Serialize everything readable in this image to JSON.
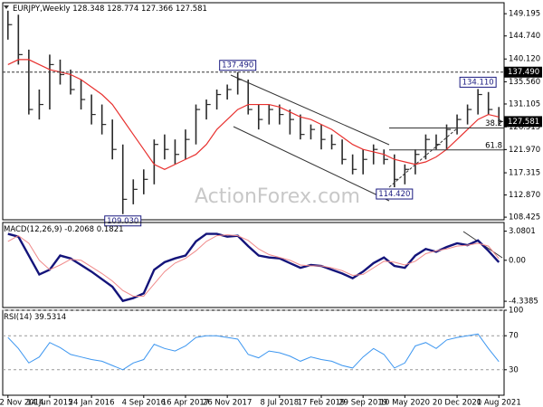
{
  "chart_data": [
    {
      "type": "hlc",
      "title": "EURJPY,Weekly",
      "quote": [
        128.348,
        128.774,
        127.366,
        127.581
      ],
      "color": "#2b2b2b",
      "high": [
        149.8,
        149,
        142,
        134,
        141,
        140,
        138,
        136,
        133,
        131,
        128,
        123,
        116,
        118,
        124,
        125,
        124,
        126,
        131,
        132,
        134,
        135,
        137.49,
        136,
        131,
        131,
        131,
        130,
        129,
        127,
        127,
        125,
        124,
        121,
        122,
        123,
        122,
        121,
        119,
        122,
        125,
        125,
        127,
        129,
        131,
        134.11,
        133.5,
        130.5
      ],
      "low": [
        144,
        139,
        129,
        128,
        130,
        135,
        133,
        130,
        127,
        125,
        120,
        109.03,
        111,
        113,
        115,
        120,
        119,
        120,
        123,
        128,
        130,
        132,
        133,
        129,
        126,
        127,
        127,
        125,
        124,
        124,
        122,
        122,
        119,
        117,
        117,
        119,
        119,
        114.42,
        115,
        117,
        120,
        122,
        122,
        125,
        127,
        129,
        129,
        127
      ],
      "close": [
        147,
        141,
        130,
        131,
        139,
        137,
        134,
        132,
        129,
        127,
        122,
        112,
        114,
        116,
        123,
        122,
        121,
        124,
        130,
        131,
        133,
        134,
        136,
        130,
        128,
        130,
        129,
        128,
        125,
        126,
        124,
        123,
        120,
        118,
        120,
        122,
        120,
        116,
        118,
        121,
        124,
        123,
        126,
        128,
        130,
        133,
        130,
        127.581
      ],
      "ma": {
        "color": "#e8312f",
        "values": [
          139,
          140,
          140,
          139,
          138,
          137.5,
          137,
          136,
          134.5,
          133,
          131,
          128,
          125,
          122,
          119,
          118,
          119,
          120,
          121,
          123,
          126,
          128,
          130,
          131,
          131,
          131,
          130.5,
          129.5,
          128.5,
          128,
          127,
          126,
          124.5,
          123,
          122,
          121.5,
          121,
          120,
          119.5,
          119,
          119.5,
          120.5,
          122,
          124,
          126,
          128,
          129,
          128.5
        ]
      },
      "ylim": [
        107.9,
        151.4
      ],
      "yticks": [
        108.425,
        {
          "value": 112.87,
          "label": "112.870"
        },
        117.315,
        {
          "value": 121.97,
          "label": "121.970"
        },
        126.515,
        131.105,
        {
          "value": 135.56,
          "label": "135.560"
        },
        {
          "value": 140.12,
          "label": "140.120"
        },
        {
          "value": 144.74,
          "label": "144.740"
        },
        149.195
      ],
      "annotations": [
        {
          "value": 137.49,
          "label": "137.490",
          "hline": true
        },
        {
          "value": 134.11,
          "label": "134.110"
        },
        {
          "value": 109.03,
          "label": "109.030"
        },
        {
          "value": 114.42,
          "label": "114.420"
        }
      ],
      "fib_levels": [
        {
          "ratio": 38.2,
          "price": 126.3
        },
        {
          "ratio": 61.8,
          "price": 121.9
        }
      ],
      "watermark": "ActionForex.com"
    },
    {
      "type": "macd",
      "title": "MACD(12,26,9)",
      "series": [
        {
          "color": "#14147a",
          "values": [
            2.8,
            2.5,
            0.5,
            -1.5,
            -1,
            0.5,
            0.2,
            -0.5,
            -1.2,
            -2,
            -2.8,
            -4.3,
            -4,
            -3.5,
            -1,
            -0.2,
            0.2,
            0.5,
            2,
            2.8,
            2.8,
            2.5,
            2.6,
            1.5,
            0.5,
            0.3,
            0.2,
            -0.3,
            -0.8,
            -0.5,
            -0.6,
            -1,
            -1.4,
            -1.9,
            -1.2,
            -0.3,
            0.3,
            -0.6,
            -0.8,
            0.5,
            1.2,
            0.9,
            1.4,
            1.8,
            1.6,
            2.1,
            1,
            -0.2068
          ]
        },
        {
          "color": "#f08a8a",
          "values": [
            2,
            2.6,
            1.8,
            0,
            -1,
            -0.5,
            0.1,
            0,
            -0.7,
            -1.4,
            -2.2,
            -3.2,
            -3.8,
            -3.8,
            -2.5,
            -1.2,
            -0.3,
            0.2,
            1,
            2,
            2.6,
            2.7,
            2.6,
            2.1,
            1.2,
            0.6,
            0.3,
            0,
            -0.5,
            -0.6,
            -0.6,
            -0.8,
            -1.1,
            -1.6,
            -1.5,
            -0.8,
            -0.1,
            -0.2,
            -0.5,
            -0.1,
            0.7,
            1,
            1.2,
            1.5,
            1.6,
            1.8,
            1.5,
            0.1821
          ]
        }
      ],
      "ylim": [
        -5,
        4
      ],
      "yticks": [
        3.0801,
        {
          "value": 0,
          "label": "0.00"
        },
        -4.3385
      ]
    },
    {
      "type": "line",
      "title": "RSI(14)",
      "series": [
        {
          "color": "#3c96f0",
          "values": [
            68,
            55,
            38,
            45,
            62,
            56,
            48,
            45,
            42,
            40,
            35,
            30,
            38,
            42,
            60,
            55,
            52,
            58,
            68,
            70,
            70,
            68,
            66,
            48,
            44,
            52,
            50,
            46,
            40,
            45,
            42,
            40,
            35,
            32,
            45,
            55,
            48,
            32,
            38,
            58,
            62,
            55,
            65,
            68,
            70,
            72,
            55,
            39.5314
          ]
        }
      ],
      "ylim": [
        0,
        100
      ],
      "yticks": [
        100,
        70,
        30
      ],
      "grid": "dashed",
      "categories": [
        "2 Nov 2014",
        null,
        null,
        null,
        "14 Jun 2015",
        null,
        null,
        null,
        "24 Jan 2016",
        null,
        null,
        null,
        null,
        "4 Sep 2016",
        null,
        null,
        null,
        "16 Apr 2017",
        null,
        null,
        null,
        "26 Nov 2017",
        null,
        null,
        null,
        null,
        "8 Jul 2018",
        null,
        null,
        null,
        "17 Feb 2019",
        null,
        null,
        null,
        "29 Sep 2019",
        null,
        null,
        null,
        "10 May 2020",
        null,
        null,
        null,
        null,
        "20 Dec 2020",
        null,
        null,
        null,
        "1 Aug 2021"
      ]
    }
  ]
}
